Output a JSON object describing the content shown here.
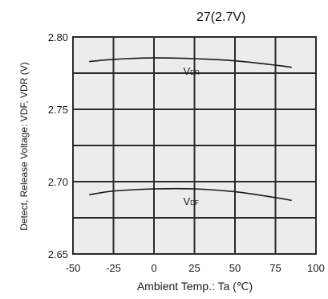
{
  "chart_data": {
    "type": "line",
    "title": "27(2.7V)",
    "xlabel": "Ambient Temp.: Ta (℃)",
    "ylabel": "Detect, Release Voltage: VDF, VDR (V)",
    "xlim": [
      -50,
      100
    ],
    "ylim": [
      2.65,
      2.8
    ],
    "x_ticks": [
      "-50",
      "-25",
      "0",
      "25",
      "50",
      "75",
      "100"
    ],
    "y_ticks": [
      "2.65",
      "2.70",
      "2.75",
      "2.80"
    ],
    "grid": true,
    "series": [
      {
        "name": "VDR",
        "label_main": "V",
        "label_sub": "DR",
        "x": [
          -40,
          -25,
          0,
          25,
          50,
          75,
          85
        ],
        "y": [
          2.783,
          2.7845,
          2.7855,
          2.785,
          2.7835,
          2.7805,
          2.779
        ]
      },
      {
        "name": "VDF",
        "label_main": "V",
        "label_sub": "DF",
        "x": [
          -40,
          -25,
          0,
          25,
          50,
          75,
          85
        ],
        "y": [
          2.691,
          2.6935,
          2.695,
          2.695,
          2.693,
          2.689,
          2.687
        ]
      }
    ]
  }
}
